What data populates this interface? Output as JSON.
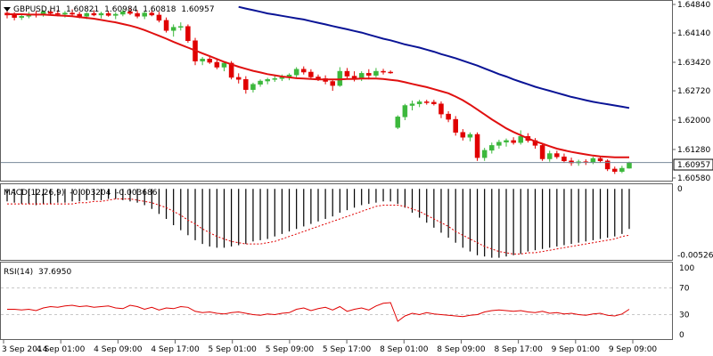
{
  "main": {
    "symbol": "GBPUSD,H1",
    "ohlc": [
      "1.60821",
      "1.60984",
      "1.60818",
      "1.60957"
    ],
    "current_price": "1.60957"
  },
  "macd": {
    "label": "MACD(12,26,9)",
    "main_value": "-0.003204",
    "signal_value": "-0.003686"
  },
  "rsi": {
    "label": "RSI(14)",
    "value": "37.6950"
  },
  "colors": {
    "bull": "#3cb83c",
    "bear": "#e00000",
    "ma_fast": "#e01010",
    "ma_slow": "#0a1496",
    "grid": "#c8c8c8",
    "price_line": "#7a8a9a"
  },
  "chart_data": [
    {
      "type": "candlestick",
      "panel": "price",
      "ylim": [
        1.6058,
        1.6484
      ],
      "y_ticks": [
        "1.64840",
        "1.64140",
        "1.63420",
        "1.62720",
        "1.62000",
        "1.61280",
        "1.60580"
      ],
      "x_tick_labels": [
        "3 Sep 2014",
        "4 Sep 01:00",
        "4 Sep 09:00",
        "4 Sep 17:00",
        "5 Sep 01:00",
        "5 Sep 09:00",
        "5 Sep 17:00",
        "8 Sep 01:00",
        "8 Sep 09:00",
        "8 Sep 17:00",
        "9 Sep 01:00",
        "9 Sep 09:00"
      ],
      "candles": [
        [
          1.6463,
          1.6472,
          1.645,
          1.6458
        ],
        [
          1.6458,
          1.6465,
          1.6445,
          1.6452
        ],
        [
          1.6452,
          1.6462,
          1.6446,
          1.6455
        ],
        [
          1.6455,
          1.6466,
          1.645,
          1.646
        ],
        [
          1.646,
          1.6468,
          1.6452,
          1.6458
        ],
        [
          1.6458,
          1.647,
          1.6454,
          1.6466
        ],
        [
          1.6466,
          1.6472,
          1.6458,
          1.6462
        ],
        [
          1.6462,
          1.647,
          1.6455,
          1.646
        ],
        [
          1.646,
          1.6468,
          1.6452,
          1.6463
        ],
        [
          1.6463,
          1.6472,
          1.6456,
          1.646
        ],
        [
          1.646,
          1.6466,
          1.645,
          1.6455
        ],
        [
          1.6455,
          1.6465,
          1.6448,
          1.6462
        ],
        [
          1.6462,
          1.647,
          1.6455,
          1.6458
        ],
        [
          1.6458,
          1.6466,
          1.645,
          1.6462
        ],
        [
          1.6462,
          1.6468,
          1.6454,
          1.6457
        ],
        [
          1.6457,
          1.6465,
          1.6448,
          1.646
        ],
        [
          1.646,
          1.6472,
          1.6455,
          1.6466
        ],
        [
          1.6466,
          1.6474,
          1.6458,
          1.6462
        ],
        [
          1.6462,
          1.647,
          1.645,
          1.6455
        ],
        [
          1.6455,
          1.6468,
          1.6448,
          1.6463
        ],
        [
          1.6463,
          1.647,
          1.6455,
          1.6458
        ],
        [
          1.6458,
          1.6466,
          1.644,
          1.6445
        ],
        [
          1.6445,
          1.6452,
          1.6415,
          1.642
        ],
        [
          1.642,
          1.6435,
          1.6405,
          1.6428
        ],
        [
          1.6428,
          1.644,
          1.642,
          1.643
        ],
        [
          1.643,
          1.6435,
          1.639,
          1.6395
        ],
        [
          1.6395,
          1.6402,
          1.6335,
          1.6345
        ],
        [
          1.6345,
          1.6355,
          1.6335,
          1.635
        ],
        [
          1.635,
          1.6356,
          1.6338,
          1.6342
        ],
        [
          1.6342,
          1.635,
          1.6325,
          1.633
        ],
        [
          1.633,
          1.6345,
          1.632,
          1.634
        ],
        [
          1.634,
          1.6345,
          1.63,
          1.6305
        ],
        [
          1.6305,
          1.6315,
          1.629,
          1.63
        ],
        [
          1.63,
          1.6308,
          1.6265,
          1.6275
        ],
        [
          1.6275,
          1.6292,
          1.6268,
          1.6288
        ],
        [
          1.6288,
          1.63,
          1.6282,
          1.6296
        ],
        [
          1.6296,
          1.6304,
          1.6288,
          1.63
        ],
        [
          1.63,
          1.631,
          1.6294,
          1.6302
        ],
        [
          1.6302,
          1.6312,
          1.6296,
          1.6305
        ],
        [
          1.6305,
          1.6315,
          1.6298,
          1.6311
        ],
        [
          1.6311,
          1.633,
          1.6305,
          1.6325
        ],
        [
          1.6325,
          1.6332,
          1.6312,
          1.6318
        ],
        [
          1.6318,
          1.6325,
          1.63,
          1.6306
        ],
        [
          1.6306,
          1.6312,
          1.6296,
          1.6302
        ],
        [
          1.6302,
          1.631,
          1.6288,
          1.6295
        ],
        [
          1.6295,
          1.63,
          1.6272,
          1.6285
        ],
        [
          1.6285,
          1.633,
          1.6282,
          1.632
        ],
        [
          1.632,
          1.6328,
          1.63,
          1.6308
        ],
        [
          1.6308,
          1.632,
          1.6295,
          1.6303
        ],
        [
          1.6303,
          1.632,
          1.6296,
          1.6315
        ],
        [
          1.6315,
          1.6325,
          1.63,
          1.631
        ],
        [
          1.631,
          1.6328,
          1.6305,
          1.632
        ],
        [
          1.632,
          1.6326,
          1.6312,
          1.6318
        ],
        [
          1.6318,
          1.6322,
          1.6314,
          1.6316
        ],
        [
          1.6182,
          1.6212,
          1.6178,
          1.6208
        ],
        [
          1.6208,
          1.624,
          1.62,
          1.6236
        ],
        [
          1.6236,
          1.6248,
          1.6224,
          1.624
        ],
        [
          1.624,
          1.625,
          1.6232,
          1.6245
        ],
        [
          1.6245,
          1.625,
          1.6238,
          1.6244
        ],
        [
          1.6244,
          1.625,
          1.6236,
          1.624
        ],
        [
          1.624,
          1.6246,
          1.6205,
          1.6215
        ],
        [
          1.6215,
          1.6222,
          1.6195,
          1.6202
        ],
        [
          1.6202,
          1.621,
          1.6162,
          1.617
        ],
        [
          1.617,
          1.6178,
          1.615,
          1.6158
        ],
        [
          1.6158,
          1.617,
          1.6148,
          1.6165
        ],
        [
          1.6165,
          1.617,
          1.61,
          1.6108
        ],
        [
          1.6108,
          1.6132,
          1.61,
          1.6126
        ],
        [
          1.6126,
          1.6145,
          1.6118,
          1.6138
        ],
        [
          1.6138,
          1.6152,
          1.613,
          1.6146
        ],
        [
          1.6146,
          1.6155,
          1.6135,
          1.615
        ],
        [
          1.615,
          1.6158,
          1.614,
          1.6145
        ],
        [
          1.6145,
          1.6175,
          1.614,
          1.616
        ],
        [
          1.616,
          1.6168,
          1.6145,
          1.615
        ],
        [
          1.615,
          1.6156,
          1.613,
          1.6138
        ],
        [
          1.6138,
          1.6142,
          1.61,
          1.6105
        ],
        [
          1.6105,
          1.6125,
          1.6098,
          1.6118
        ],
        [
          1.6118,
          1.6125,
          1.6105,
          1.611
        ],
        [
          1.611,
          1.6118,
          1.6095,
          1.61
        ],
        [
          1.61,
          1.6108,
          1.6088,
          1.6095
        ],
        [
          1.6095,
          1.6103,
          1.6088,
          1.6098
        ],
        [
          1.6098,
          1.6104,
          1.609,
          1.6096
        ],
        [
          1.6096,
          1.611,
          1.6092,
          1.6106
        ],
        [
          1.6106,
          1.6112,
          1.6095,
          1.61
        ],
        [
          1.61,
          1.6104,
          1.6075,
          1.608
        ],
        [
          1.608,
          1.6086,
          1.6068,
          1.6074
        ],
        [
          1.6074,
          1.6088,
          1.607,
          1.6082
        ],
        [
          1.6082,
          1.6098,
          1.6081,
          1.6096
        ]
      ],
      "ma_fast": [
        1.646,
        1.646,
        1.646,
        1.6459,
        1.6459,
        1.6459,
        1.6458,
        1.6457,
        1.6456,
        1.6455,
        1.6453,
        1.6451,
        1.6449,
        1.6446,
        1.6443,
        1.644,
        1.6436,
        1.6432,
        1.6427,
        1.6421,
        1.6414,
        1.6407,
        1.64,
        1.6392,
        1.6385,
        1.6378,
        1.6371,
        1.6364,
        1.6357,
        1.635,
        1.6343,
        1.6337,
        1.6331,
        1.6326,
        1.6321,
        1.6317,
        1.6313,
        1.631,
        1.6307,
        1.6305,
        1.6303,
        1.6302,
        1.6301,
        1.63,
        1.63,
        1.63,
        1.63,
        1.6301,
        1.6301,
        1.6302,
        1.6302,
        1.6302,
        1.6301,
        1.6299,
        1.6297,
        1.6293,
        1.6289,
        1.6285,
        1.6281,
        1.6276,
        1.6271,
        1.6266,
        1.6258,
        1.6249,
        1.6238,
        1.6226,
        1.6214,
        1.6202,
        1.6191,
        1.618,
        1.6171,
        1.6163,
        1.6155,
        1.6148,
        1.6142,
        1.6136,
        1.613,
        1.6126,
        1.6122,
        1.6119,
        1.6116,
        1.6113,
        1.6111,
        1.611,
        1.6109,
        1.6109,
        1.6109
      ],
      "ma_slow": [
        1.6478,
        1.6474,
        1.647,
        1.6466,
        1.6462,
        1.6459,
        1.6456,
        1.6453,
        1.645,
        1.6447,
        1.6443,
        1.6439,
        1.6435,
        1.6431,
        1.6427,
        1.6423,
        1.6419,
        1.6415,
        1.641,
        1.6405,
        1.64,
        1.6396,
        1.6391,
        1.6386,
        1.6382,
        1.6378,
        1.6373,
        1.6368,
        1.6362,
        1.6357,
        1.6352,
        1.6346,
        1.634,
        1.6334,
        1.6327,
        1.632,
        1.6313,
        1.6307,
        1.63,
        1.6294,
        1.6288,
        1.6282,
        1.6277,
        1.6272,
        1.6267,
        1.6262,
        1.6257,
        1.6253,
        1.6249,
        1.6245,
        1.6242,
        1.6239,
        1.6236,
        1.6233,
        1.623
      ],
      "ma_slow_start_index": 32
    },
    {
      "type": "macd",
      "panel": "macd",
      "y_ticks": [
        "0",
        "-0.005263"
      ],
      "ylim": [
        -0.0056,
        0.0003
      ],
      "histogram": [
        -0.001,
        -0.0011,
        -0.0012,
        -0.0012,
        -0.0013,
        -0.0012,
        -0.0012,
        -0.0011,
        -0.0011,
        -0.001,
        -0.001,
        -0.0009,
        -0.0009,
        -0.0009,
        -0.0008,
        -0.0008,
        -0.0009,
        -0.001,
        -0.0011,
        -0.0013,
        -0.0016,
        -0.002,
        -0.0024,
        -0.0029,
        -0.0033,
        -0.0037,
        -0.0041,
        -0.0044,
        -0.0046,
        -0.0047,
        -0.0047,
        -0.0046,
        -0.0045,
        -0.0044,
        -0.0042,
        -0.0041,
        -0.004,
        -0.0038,
        -0.0036,
        -0.0034,
        -0.0032,
        -0.003,
        -0.0028,
        -0.0026,
        -0.0024,
        -0.0022,
        -0.0019,
        -0.0017,
        -0.0015,
        -0.0013,
        -0.0012,
        -0.0011,
        -0.001,
        -0.001,
        -0.0012,
        -0.0015,
        -0.0019,
        -0.0023,
        -0.0027,
        -0.0031,
        -0.0035,
        -0.0039,
        -0.0043,
        -0.0047,
        -0.005,
        -0.0053,
        -0.0054,
        -0.0055,
        -0.0055,
        -0.0054,
        -0.0053,
        -0.0052,
        -0.005,
        -0.0049,
        -0.0048,
        -0.0047,
        -0.0046,
        -0.0045,
        -0.0044,
        -0.0043,
        -0.0042,
        -0.0041,
        -0.004,
        -0.0039,
        -0.0038,
        -0.0036,
        -0.0032
      ],
      "signal": [
        -0.0012,
        -0.0012,
        -0.0012,
        -0.0012,
        -0.0012,
        -0.0012,
        -0.0012,
        -0.0012,
        -0.0012,
        -0.0012,
        -0.0011,
        -0.0011,
        -0.001,
        -0.001,
        -0.0009,
        -0.0008,
        -0.0008,
        -0.0008,
        -0.0009,
        -0.001,
        -0.0011,
        -0.0013,
        -0.0015,
        -0.0018,
        -0.0021,
        -0.0025,
        -0.0028,
        -0.0032,
        -0.0035,
        -0.0038,
        -0.004,
        -0.0042,
        -0.0043,
        -0.0044,
        -0.0044,
        -0.0044,
        -0.0043,
        -0.0042,
        -0.004,
        -0.0038,
        -0.0036,
        -0.0034,
        -0.0032,
        -0.003,
        -0.0028,
        -0.0026,
        -0.0024,
        -0.0022,
        -0.002,
        -0.0018,
        -0.0016,
        -0.0014,
        -0.0013,
        -0.0013,
        -0.0013,
        -0.0014,
        -0.0016,
        -0.0018,
        -0.0021,
        -0.0024,
        -0.0027,
        -0.003,
        -0.0034,
        -0.0037,
        -0.004,
        -0.0043,
        -0.0046,
        -0.0048,
        -0.005,
        -0.0051,
        -0.0052,
        -0.0052,
        -0.0051,
        -0.0051,
        -0.005,
        -0.0049,
        -0.0048,
        -0.0047,
        -0.0046,
        -0.0045,
        -0.0044,
        -0.0043,
        -0.0042,
        -0.0041,
        -0.004,
        -0.0038,
        -0.0037
      ]
    },
    {
      "type": "line",
      "panel": "rsi",
      "ylim": [
        0,
        100
      ],
      "y_ticks": [
        "100",
        "70",
        "30",
        "0"
      ],
      "levels": [
        70,
        30
      ],
      "values": [
        38,
        38,
        37,
        38,
        36,
        40,
        42,
        41,
        43,
        44,
        42,
        43,
        41,
        42,
        43,
        40,
        39,
        44,
        42,
        38,
        41,
        37,
        40,
        39,
        42,
        41,
        35,
        33,
        34,
        32,
        31,
        33,
        34,
        32,
        30,
        29,
        31,
        30,
        32,
        33,
        38,
        40,
        36,
        39,
        41,
        37,
        42,
        35,
        38,
        40,
        37,
        43,
        47,
        48,
        20,
        28,
        32,
        30,
        33,
        31,
        30,
        29,
        28,
        27,
        29,
        30,
        34,
        36,
        37,
        36,
        35,
        36,
        34,
        33,
        35,
        32,
        33,
        31,
        32,
        30,
        29,
        31,
        32,
        29,
        28,
        31,
        38
      ]
    }
  ]
}
